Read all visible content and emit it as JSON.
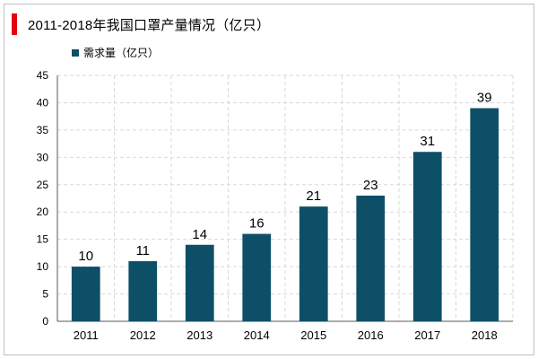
{
  "header": {
    "title": "2011-2018年我国口罩产量情况（亿只）"
  },
  "chart_data": {
    "type": "bar",
    "title": "2011-2018年我国口罩产量情况（亿只）",
    "xlabel": "",
    "ylabel": "",
    "categories": [
      "2011",
      "2012",
      "2013",
      "2014",
      "2015",
      "2016",
      "2017",
      "2018"
    ],
    "series": [
      {
        "name": "需求量（亿只）",
        "values": [
          10,
          11,
          14,
          16,
          21,
          23,
          31,
          39
        ],
        "color": "#0d4f67"
      }
    ],
    "data_labels": [
      "10",
      "11",
      "14",
      "16",
      "21",
      "23",
      "31",
      "39"
    ],
    "ylim": [
      0,
      45
    ],
    "yticks": [
      0,
      5,
      10,
      15,
      20,
      25,
      30,
      35,
      40,
      45
    ],
    "ytick_labels": [
      "0",
      "5",
      "10",
      "15",
      "20",
      "25",
      "30",
      "35",
      "40",
      "45"
    ],
    "grid": true,
    "legend_position": "top-left"
  }
}
